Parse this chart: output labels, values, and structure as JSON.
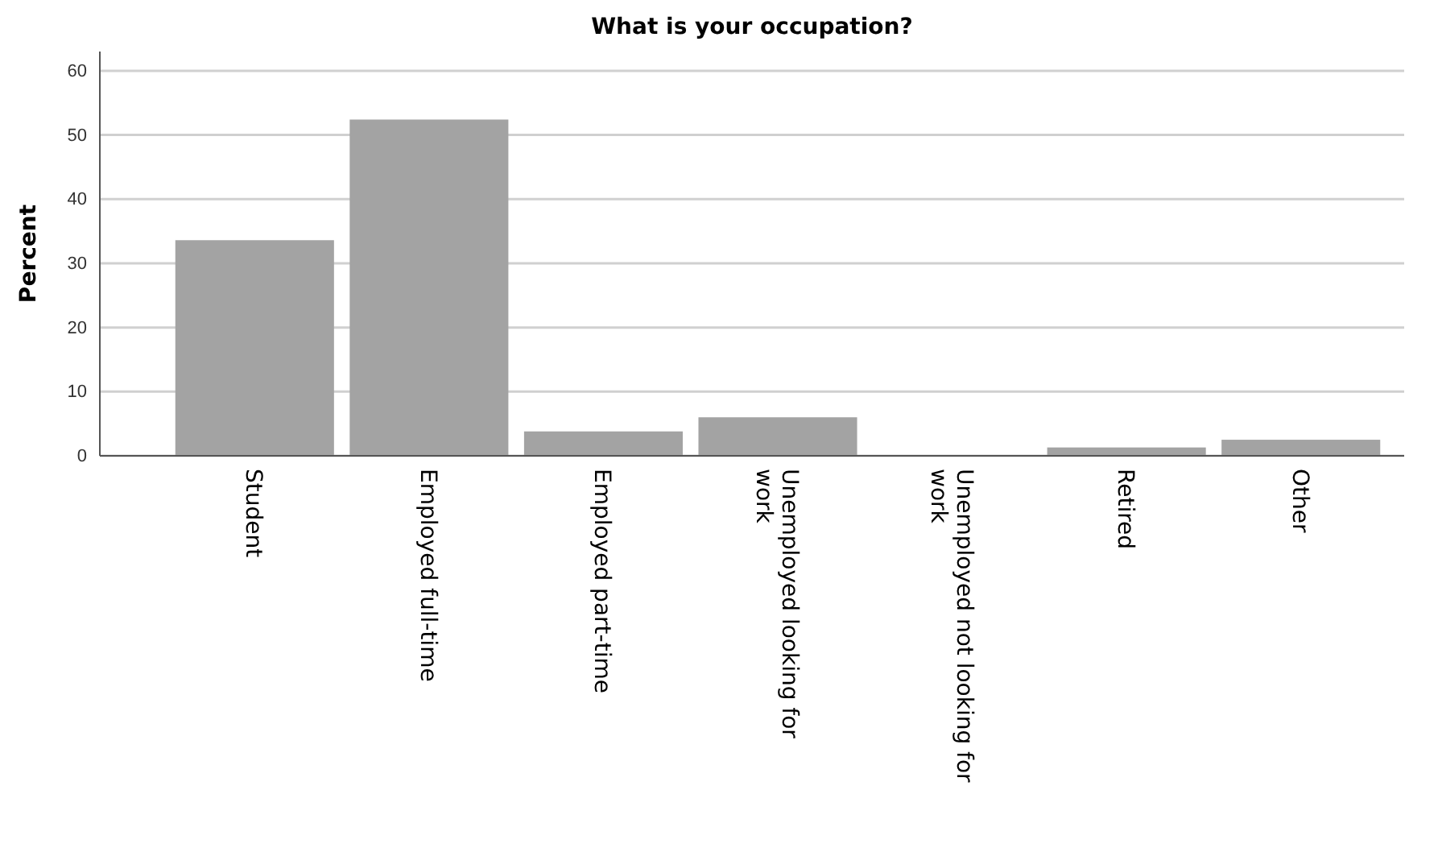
{
  "chart_data": {
    "type": "bar",
    "title": "What is your occupation?",
    "ylabel": "Percent",
    "categories": [
      "Student",
      "Employed full-time",
      "Employed part-time",
      "Unemployed looking for work",
      "Unemployed not looking for work",
      "Retired",
      "Other"
    ],
    "values": [
      33.6,
      52.4,
      3.8,
      6.0,
      0,
      1.3,
      2.5
    ],
    "color": "#a3a3a3",
    "ylim": [
      0,
      63
    ],
    "yticks": [
      0,
      10,
      20,
      30,
      40,
      50,
      60
    ],
    "grid": "y"
  }
}
